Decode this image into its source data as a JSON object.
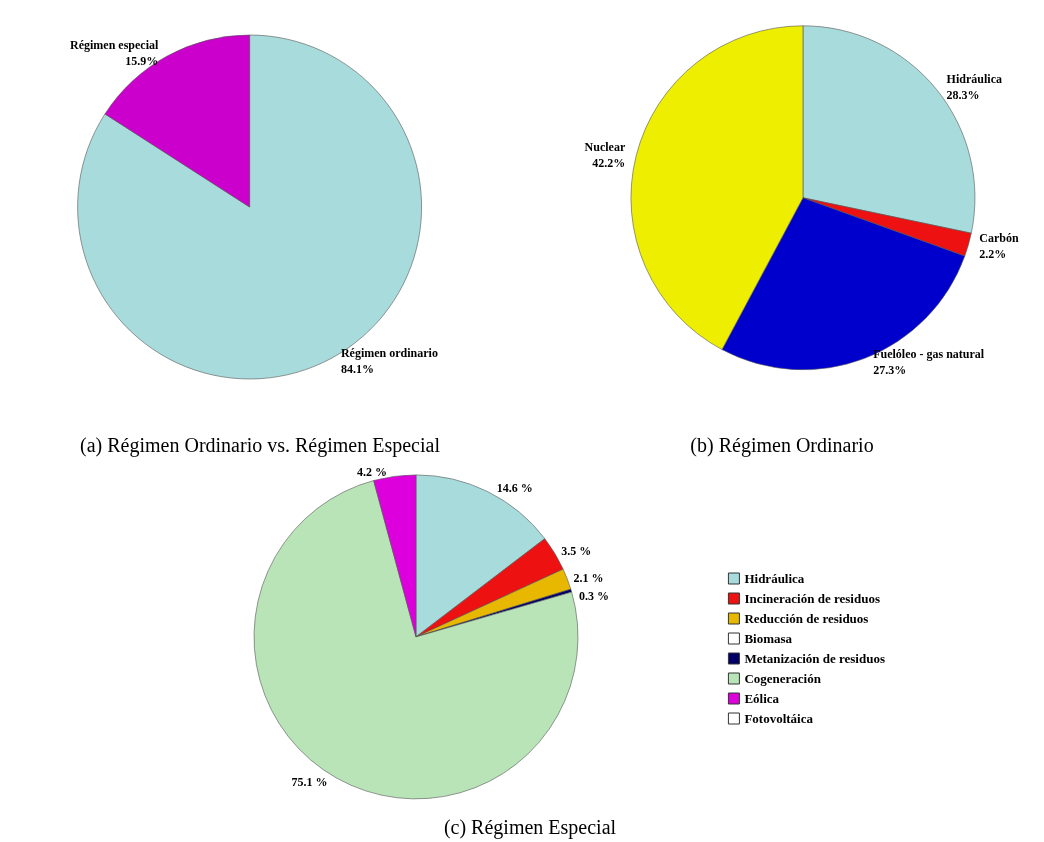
{
  "chart_data": [
    {
      "type": "pie",
      "title": "(a) Régimen Ordinario vs. Régimen Especial",
      "categories": [
        "Régimen ordinario",
        "Régimen especial"
      ],
      "values": [
        84.1,
        15.9
      ],
      "colors": [
        "#a8dcdc",
        "#cc00cc"
      ],
      "value_labels": [
        "84.1%",
        "15.9%"
      ],
      "legend": false
    },
    {
      "type": "pie",
      "title": "(b) Régimen Ordinario",
      "categories": [
        "Hidráulica",
        "Carbón",
        "Fuelóleo - gas natural",
        "Nuclear"
      ],
      "values": [
        28.3,
        2.2,
        27.3,
        42.2
      ],
      "colors": [
        "#a8dcdc",
        "#ee1111",
        "#0000cc",
        "#eeee00"
      ],
      "value_labels": [
        "28.3%",
        "2.2%",
        "27.3%",
        "42.2%"
      ],
      "legend": false
    },
    {
      "type": "pie",
      "title": "(c) Régimen Especial",
      "categories": [
        "Hidráulica",
        "Incineración de residuos",
        "Reducción de residuos",
        "Biomasa",
        "Metanización de residuos",
        "Cogeneración",
        "Eólica",
        "Fotovoltáica"
      ],
      "values": [
        14.6,
        3.5,
        2.1,
        null,
        0.3,
        75.1,
        4.2,
        null
      ],
      "colors": [
        "#a8dcdc",
        "#ee1111",
        "#e8b800",
        "#ffffff",
        "#000066",
        "#b8e4b8",
        "#dd00dd",
        "#ffffff"
      ],
      "value_labels": [
        "14.6 %",
        "3.5 %",
        "2.1 %",
        null,
        "0.3 %",
        "75.1 %",
        "4.2 %",
        null
      ],
      "legend": "right"
    }
  ]
}
